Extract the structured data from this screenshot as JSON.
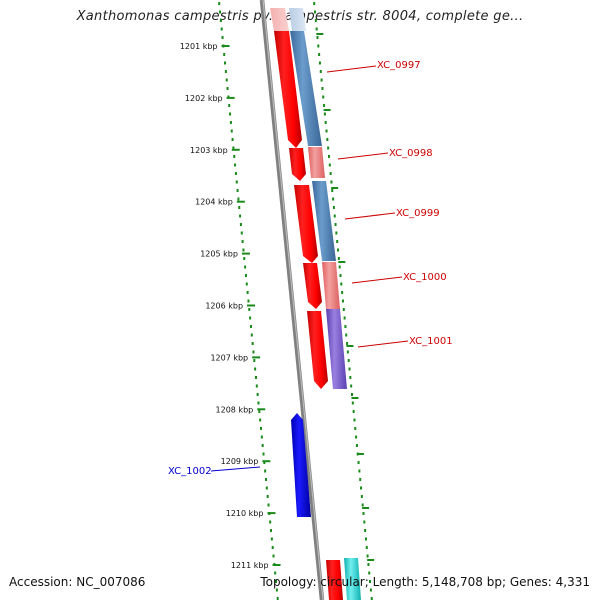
{
  "title": "Xanthomonas campestris pv. campestris str. 8004, complete ge...",
  "footer": {
    "accession": "Accession: NC_007086",
    "topology": "Topology: circular;",
    "length": "Length: 5,148,708 bp;",
    "genes": "Genes: 4,331"
  },
  "axis": {
    "ticks": [
      "1201 kbp",
      "1202 kbp",
      "1203 kbp",
      "1204 kbp",
      "1205 kbp",
      "1206 kbp",
      "1207 kbp",
      "1208 kbp",
      "1209 kbp",
      "1210 kbp",
      "1211 kbp"
    ]
  },
  "genes": [
    {
      "name": "XC_0997",
      "strand": "forward",
      "color": "#cc0000"
    },
    {
      "name": "XC_0998",
      "strand": "forward",
      "color": "#cc0000"
    },
    {
      "name": "XC_0999",
      "strand": "forward",
      "color": "#cc0000"
    },
    {
      "name": "XC_1000",
      "strand": "forward",
      "color": "#cc0000"
    },
    {
      "name": "XC_1001",
      "strand": "forward",
      "color": "#cc0000"
    },
    {
      "name": "XC_1002",
      "strand": "reverse",
      "color": "#0000cc"
    }
  ],
  "colors": {
    "backbone": "#808080",
    "dots": "#1a8a1a",
    "forward_gene": "#ff0000",
    "reverse_gene": "#0000ff",
    "steel_blue": "#4a7fb5",
    "light_red": "#f08080",
    "violet": "#7a5ccc",
    "cyan": "#22cccc"
  }
}
